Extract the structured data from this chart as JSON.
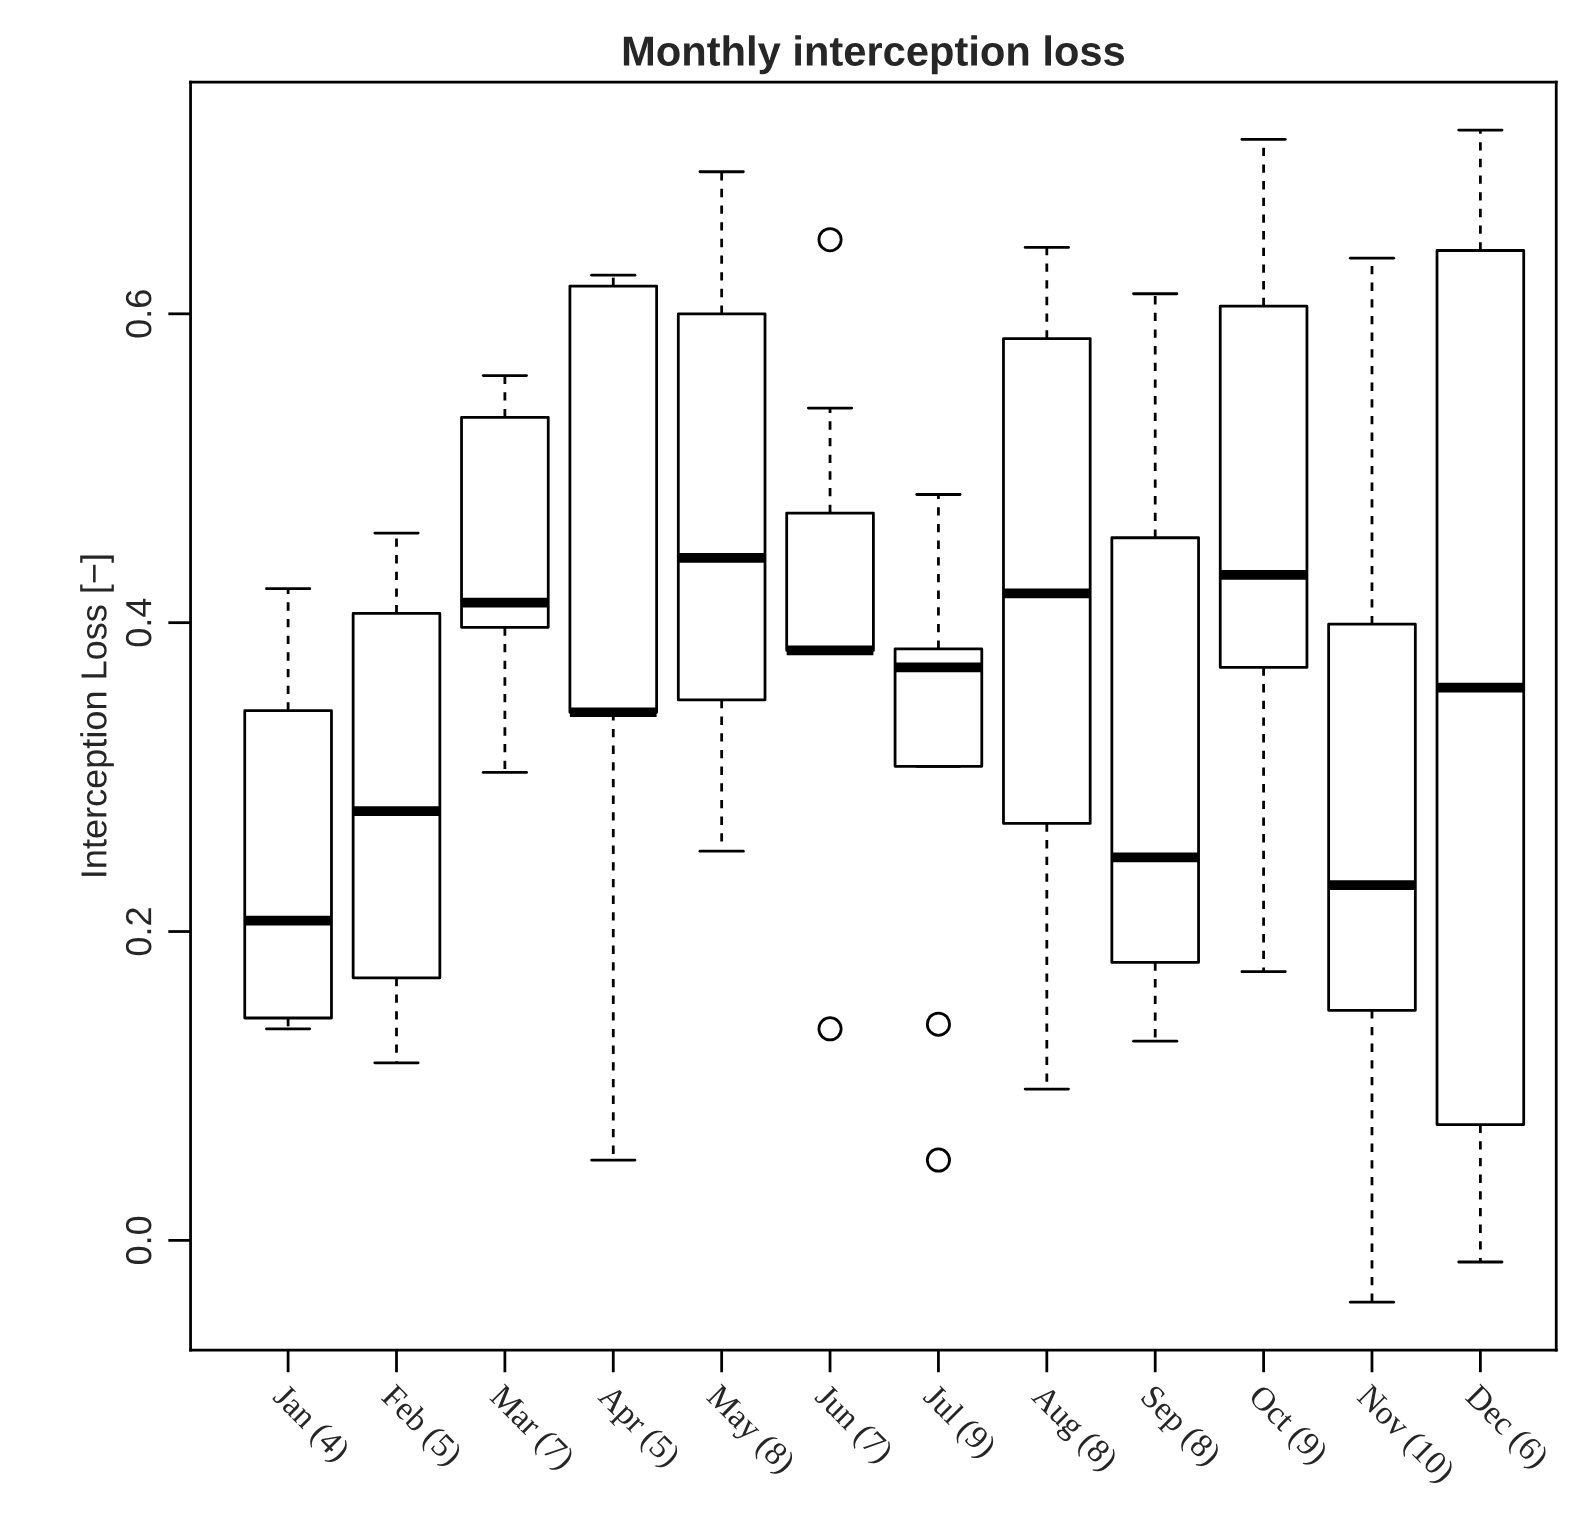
{
  "chart_data": {
    "type": "box",
    "title": "Monthly interception loss",
    "ylabel": "Interception Loss [−]",
    "categories": [
      "Jan (4)",
      "Feb (5)",
      "Mar (7)",
      "Apr (5)",
      "May (8)",
      "Jun (7)",
      "Jul (9)",
      "Aug (8)",
      "Sep (8)",
      "Oct (9)",
      "Nov (10)",
      "Dec (6)"
    ],
    "boxes": [
      {
        "low": 0.137,
        "q1": 0.144,
        "median": 0.207,
        "q3": 0.343,
        "high": 0.422
      },
      {
        "low": 0.115,
        "q1": 0.17,
        "median": 0.278,
        "q3": 0.406,
        "high": 0.458
      },
      {
        "low": 0.303,
        "q1": 0.397,
        "median": 0.413,
        "q3": 0.533,
        "high": 0.56
      },
      {
        "low": 0.052,
        "q1": 0.342,
        "median": 0.342,
        "q3": 0.618,
        "high": 0.625
      },
      {
        "low": 0.252,
        "q1": 0.35,
        "median": 0.442,
        "q3": 0.6,
        "high": 0.692
      },
      {
        "low": 0.382,
        "q1": 0.382,
        "median": 0.382,
        "q3": 0.471,
        "high": 0.539,
        "outliers": [
          0.648,
          0.137
        ]
      },
      {
        "low": 0.307,
        "q1": 0.307,
        "median": 0.371,
        "q3": 0.383,
        "high": 0.483,
        "outliers": [
          0.14,
          0.052
        ]
      },
      {
        "low": 0.098,
        "q1": 0.27,
        "median": 0.419,
        "q3": 0.584,
        "high": 0.643
      },
      {
        "low": 0.129,
        "q1": 0.18,
        "median": 0.248,
        "q3": 0.455,
        "high": 0.613
      },
      {
        "low": 0.174,
        "q1": 0.371,
        "median": 0.431,
        "q3": 0.605,
        "high": 0.713
      },
      {
        "low": -0.04,
        "q1": 0.149,
        "median": 0.23,
        "q3": 0.399,
        "high": 0.636
      },
      {
        "low": -0.014,
        "q1": 0.075,
        "median": 0.358,
        "q3": 0.641,
        "high": 0.719
      }
    ],
    "ylim": [
      -0.071,
      0.75
    ],
    "yticks": [
      {
        "value": 0,
        "label": "0.0"
      },
      0.2,
      0.4,
      0.6
    ],
    "grid": false
  }
}
